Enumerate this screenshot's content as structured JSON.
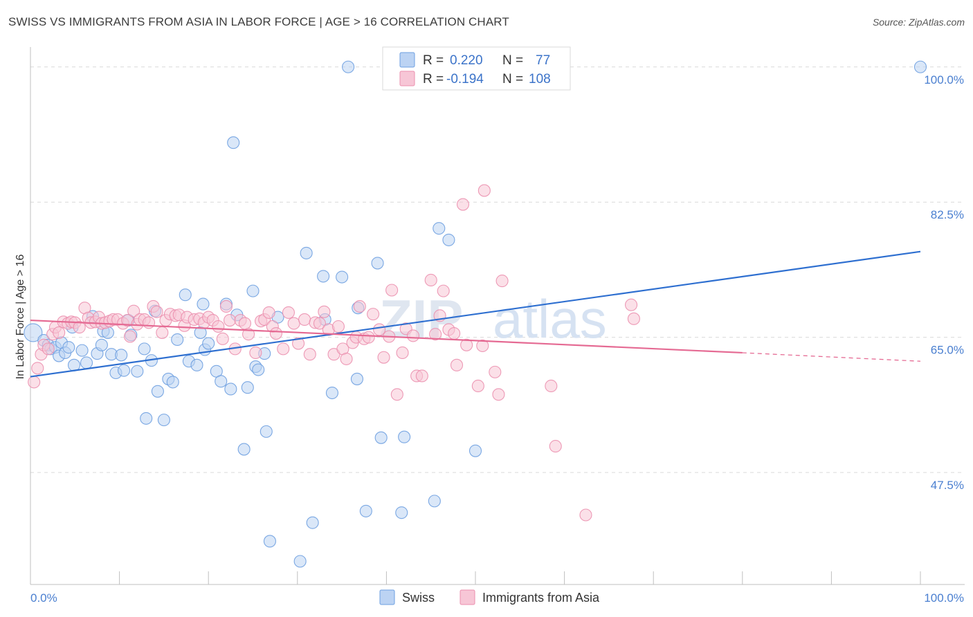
{
  "title": "SWISS VS IMMIGRANTS FROM ASIA IN LABOR FORCE | AGE > 16 CORRELATION CHART",
  "source": "Source: ZipAtlas.com",
  "watermark": {
    "zip": "ZIP",
    "atlas": "atlas"
  },
  "colors": {
    "swiss": "#6d9fe0",
    "swiss_fill": "#bcd3f3",
    "swiss_line": "#2e6fd0",
    "asia": "#eb8fae",
    "asia_fill": "#f7c6d6",
    "asia_line": "#e56a93",
    "axis_label": "#4a7fd0",
    "grid": "#d9d9d9"
  },
  "legend": {
    "rows": [
      {
        "r_label": "R =",
        "r_value": "0.220",
        "n_label": "N =",
        "n_value": "77"
      },
      {
        "r_label": "R =",
        "r_value": "-0.194",
        "n_label": "N =",
        "n_value": "108"
      }
    ]
  },
  "bottom_legend": [
    "Swiss",
    "Immigrants from Asia"
  ],
  "chart_data": {
    "type": "scatter",
    "xlabel": "",
    "ylabel": "In Labor Force | Age > 16",
    "xlim": [
      0,
      100
    ],
    "ylim": [
      33,
      101.5
    ],
    "x_tick_labels": [
      "0.0%",
      "100.0%"
    ],
    "y_ticks": [
      47.5,
      65.0,
      82.5,
      100.0
    ],
    "y_tick_labels": [
      "47.5%",
      "65.0%",
      "82.5%",
      "100.0%"
    ],
    "grid": true,
    "legend_placement": "top-center",
    "series": [
      {
        "name": "Swiss",
        "R": 0.22,
        "N": 77,
        "trend": {
          "x": [
            0,
            100
          ],
          "y": [
            59.9,
            76.1
          ]
        },
        "points": [
          [
            0.3,
            65.6
          ],
          [
            1.5,
            64.6
          ],
          [
            2.0,
            64.0
          ],
          [
            2.3,
            63.5
          ],
          [
            2.8,
            63.7
          ],
          [
            3.2,
            62.6
          ],
          [
            3.5,
            64.3
          ],
          [
            3.9,
            63.0
          ],
          [
            4.3,
            63.7
          ],
          [
            4.7,
            66.3
          ],
          [
            4.9,
            61.4
          ],
          [
            5.8,
            63.3
          ],
          [
            6.3,
            61.7
          ],
          [
            7.0,
            67.7
          ],
          [
            7.5,
            62.9
          ],
          [
            8.0,
            64.0
          ],
          [
            8.2,
            65.8
          ],
          [
            8.7,
            65.6
          ],
          [
            9.1,
            62.8
          ],
          [
            9.6,
            60.4
          ],
          [
            10.2,
            62.7
          ],
          [
            10.5,
            60.7
          ],
          [
            11.0,
            67.2
          ],
          [
            11.3,
            65.3
          ],
          [
            12.0,
            60.6
          ],
          [
            12.8,
            63.5
          ],
          [
            13.0,
            54.5
          ],
          [
            13.6,
            62.0
          ],
          [
            14.0,
            68.4
          ],
          [
            14.3,
            58.0
          ],
          [
            15.0,
            54.3
          ],
          [
            15.5,
            59.6
          ],
          [
            16.0,
            59.2
          ],
          [
            16.5,
            64.7
          ],
          [
            17.4,
            70.5
          ],
          [
            17.8,
            61.9
          ],
          [
            18.7,
            61.4
          ],
          [
            19.1,
            65.6
          ],
          [
            19.4,
            69.3
          ],
          [
            19.6,
            63.4
          ],
          [
            20.0,
            64.2
          ],
          [
            20.9,
            60.6
          ],
          [
            21.4,
            59.3
          ],
          [
            22.0,
            69.3
          ],
          [
            22.5,
            58.3
          ],
          [
            22.8,
            90.2
          ],
          [
            23.2,
            67.9
          ],
          [
            24.0,
            50.5
          ],
          [
            24.4,
            58.5
          ],
          [
            25.0,
            71.0
          ],
          [
            25.3,
            61.2
          ],
          [
            25.6,
            60.8
          ],
          [
            26.3,
            62.9
          ],
          [
            26.5,
            52.8
          ],
          [
            26.9,
            38.6
          ],
          [
            27.8,
            67.6
          ],
          [
            30.3,
            36.0
          ],
          [
            31.0,
            75.9
          ],
          [
            31.7,
            41.0
          ],
          [
            32.9,
            72.9
          ],
          [
            33.1,
            67.3
          ],
          [
            33.9,
            57.8
          ],
          [
            35.0,
            72.8
          ],
          [
            35.7,
            100.0
          ],
          [
            36.7,
            59.6
          ],
          [
            36.8,
            68.8
          ],
          [
            37.7,
            42.5
          ],
          [
            39.0,
            74.6
          ],
          [
            39.4,
            52.0
          ],
          [
            41.7,
            42.3
          ],
          [
            42.0,
            52.1
          ],
          [
            45.4,
            43.8
          ],
          [
            45.9,
            79.1
          ],
          [
            47.0,
            77.6
          ],
          [
            50.0,
            50.3
          ],
          [
            50.8,
            100.0
          ],
          [
            100.0,
            100.0
          ]
        ]
      },
      {
        "name": "Immigrants from Asia",
        "R": -0.194,
        "N": 108,
        "trend": {
          "x": [
            0,
            80
          ],
          "y": [
            67.2,
            63.0
          ]
        },
        "trend_dashed": {
          "x": [
            80,
            100
          ],
          "y": [
            63.0,
            61.9
          ]
        },
        "points": [
          [
            0.4,
            59.2
          ],
          [
            0.8,
            61.0
          ],
          [
            1.2,
            62.8
          ],
          [
            1.5,
            64.0
          ],
          [
            2.0,
            63.5
          ],
          [
            2.5,
            65.4
          ],
          [
            2.8,
            66.3
          ],
          [
            3.2,
            65.6
          ],
          [
            3.7,
            67.0
          ],
          [
            4.2,
            66.8
          ],
          [
            4.6,
            67.0
          ],
          [
            5.0,
            66.9
          ],
          [
            5.5,
            66.3
          ],
          [
            6.1,
            68.8
          ],
          [
            6.5,
            67.5
          ],
          [
            6.8,
            66.9
          ],
          [
            7.3,
            67.0
          ],
          [
            7.7,
            67.6
          ],
          [
            8.0,
            66.8
          ],
          [
            8.4,
            66.9
          ],
          [
            8.9,
            67.1
          ],
          [
            9.3,
            67.3
          ],
          [
            9.8,
            67.3
          ],
          [
            10.4,
            66.8
          ],
          [
            10.9,
            67.2
          ],
          [
            11.2,
            65.1
          ],
          [
            11.6,
            68.4
          ],
          [
            12.0,
            66.7
          ],
          [
            12.3,
            67.3
          ],
          [
            12.8,
            67.3
          ],
          [
            13.3,
            66.9
          ],
          [
            13.8,
            69.0
          ],
          [
            14.2,
            68.3
          ],
          [
            14.8,
            65.6
          ],
          [
            15.2,
            67.2
          ],
          [
            15.7,
            68.0
          ],
          [
            16.3,
            67.8
          ],
          [
            16.7,
            67.9
          ],
          [
            17.3,
            66.5
          ],
          [
            17.6,
            67.6
          ],
          [
            18.4,
            67.3
          ],
          [
            19.0,
            67.4
          ],
          [
            19.5,
            66.9
          ],
          [
            20.0,
            67.6
          ],
          [
            20.5,
            67.2
          ],
          [
            21.1,
            66.4
          ],
          [
            21.6,
            64.8
          ],
          [
            22.0,
            69.0
          ],
          [
            22.4,
            67.2
          ],
          [
            23.0,
            63.5
          ],
          [
            23.6,
            67.2
          ],
          [
            24.1,
            66.8
          ],
          [
            24.5,
            65.4
          ],
          [
            25.3,
            63.0
          ],
          [
            25.9,
            67.1
          ],
          [
            26.3,
            67.3
          ],
          [
            26.8,
            68.2
          ],
          [
            27.2,
            66.4
          ],
          [
            27.6,
            65.5
          ],
          [
            28.4,
            63.5
          ],
          [
            29.0,
            68.2
          ],
          [
            29.6,
            66.8
          ],
          [
            30.1,
            64.2
          ],
          [
            30.8,
            67.3
          ],
          [
            31.4,
            62.8
          ],
          [
            32.0,
            66.9
          ],
          [
            32.5,
            66.8
          ],
          [
            33.0,
            68.3
          ],
          [
            33.5,
            66.0
          ],
          [
            34.1,
            62.8
          ],
          [
            34.6,
            66.4
          ],
          [
            35.1,
            63.5
          ],
          [
            35.5,
            62.2
          ],
          [
            36.2,
            64.3
          ],
          [
            36.6,
            65.0
          ],
          [
            37.0,
            69.0
          ],
          [
            37.5,
            64.8
          ],
          [
            38.0,
            65.0
          ],
          [
            38.5,
            68.0
          ],
          [
            39.2,
            66.0
          ],
          [
            39.7,
            62.4
          ],
          [
            40.3,
            65.1
          ],
          [
            40.6,
            71.1
          ],
          [
            41.2,
            57.6
          ],
          [
            41.8,
            63.0
          ],
          [
            42.2,
            66.1
          ],
          [
            43.0,
            65.2
          ],
          [
            43.4,
            60.0
          ],
          [
            44.0,
            60.0
          ],
          [
            45.0,
            72.4
          ],
          [
            45.5,
            65.4
          ],
          [
            46.0,
            67.8
          ],
          [
            46.4,
            71.0
          ],
          [
            47.0,
            66.0
          ],
          [
            47.6,
            65.5
          ],
          [
            47.9,
            61.4
          ],
          [
            48.6,
            82.2
          ],
          [
            49.0,
            64.0
          ],
          [
            50.3,
            58.7
          ],
          [
            50.8,
            63.9
          ],
          [
            51.0,
            84.0
          ],
          [
            52.2,
            60.5
          ],
          [
            52.6,
            57.6
          ],
          [
            53.0,
            72.3
          ],
          [
            58.5,
            58.7
          ],
          [
            59.0,
            50.9
          ],
          [
            62.4,
            42.0
          ],
          [
            67.5,
            69.2
          ],
          [
            67.8,
            67.4
          ]
        ]
      }
    ]
  }
}
